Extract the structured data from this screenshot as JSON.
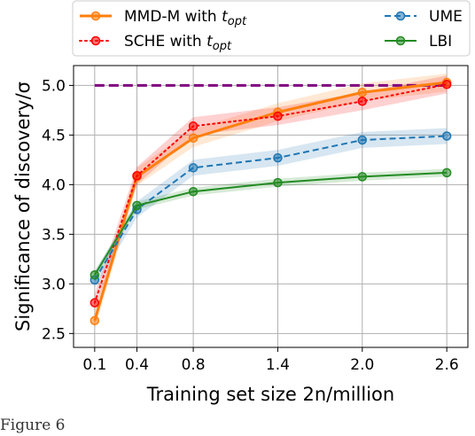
{
  "chart_data": {
    "type": "line",
    "title": "",
    "xlabel": "Training set size 2n/million",
    "ylabel": "Significance of discovery/σ",
    "x": [
      0.1,
      0.4,
      0.8,
      1.4,
      2.0,
      2.6
    ],
    "x_tick_labels": [
      "0.1",
      "0.4",
      "0.8",
      "1.4",
      "2.0",
      "2.6"
    ],
    "y_ticks": [
      2.5,
      3.0,
      3.5,
      4.0,
      4.5,
      5.0
    ],
    "y_tick_labels": [
      "2.5",
      "3.0",
      "3.5",
      "4.0",
      "4.5",
      "5.0"
    ],
    "xlim": [
      -0.05,
      2.75
    ],
    "ylim": [
      2.36,
      5.2
    ],
    "grid": true,
    "legend_position": "top",
    "reference_line": {
      "y": 5.0,
      "color": "#800080",
      "style": "dashed"
    },
    "series": [
      {
        "name": "MMD-M with t_opt",
        "label_main": "MMD-M with ",
        "label_sub": "opt",
        "color": "#ff7f0e",
        "style": "solid",
        "values": [
          2.63,
          4.08,
          4.47,
          4.73,
          4.93,
          5.03
        ],
        "band": 0.09
      },
      {
        "name": "SCHE with t_opt",
        "label_main": "SCHE with ",
        "label_sub": "opt",
        "color": "#ff0000",
        "style": "dotted",
        "values": [
          2.81,
          4.09,
          4.59,
          4.69,
          4.84,
          5.01
        ],
        "band": 0.09
      },
      {
        "name": "UME",
        "label_main": "UME",
        "label_sub": "",
        "color": "#1f77b4",
        "style": "dashed",
        "values": [
          3.04,
          3.75,
          4.17,
          4.27,
          4.45,
          4.49
        ],
        "band": 0.08
      },
      {
        "name": "LBI",
        "label_main": "LBI",
        "label_sub": "",
        "color": "#228b22",
        "style": "solid",
        "values": [
          3.09,
          3.79,
          3.93,
          4.02,
          4.08,
          4.12
        ],
        "band": 0.04
      }
    ]
  },
  "caption": "Figure 6"
}
